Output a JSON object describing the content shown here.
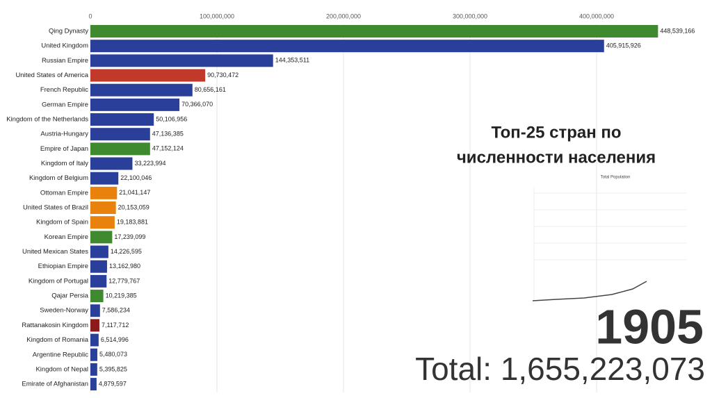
{
  "chart_data": {
    "type": "bar",
    "orientation": "horizontal",
    "title_lines": [
      "Топ-25 стран по",
      "численности населения"
    ],
    "inset_title": "Total Population",
    "year": "1905",
    "total": "Total: 1,655,223,073",
    "categories": [
      "Qing Dynasty",
      "United Kingdom",
      "Russian Empire",
      "United States of America",
      "French Republic",
      "German Empire",
      "Kingdom of the Netherlands",
      "Austria-Hungary",
      "Empire of Japan",
      "Kingdom of Italy",
      "Kingdom of Belgium",
      "Ottoman Empire",
      "United States of Brazil",
      "Kingdom of Spain",
      "Korean Empire",
      "United Mexican States",
      "Ethiopian Empire",
      "Kingdom of Portugal",
      "Qajar Persia",
      "Sweden-Norway",
      "Rattanakosin Kingdom",
      "Kingdom of Romania",
      "Argentine Republic",
      "Kingdom of Nepal",
      "Emirate of Afghanistan"
    ],
    "values": [
      448539166,
      405915926,
      144353511,
      90730472,
      80656161,
      70366070,
      50106956,
      47136385,
      47152124,
      33223994,
      22100046,
      21041147,
      20153059,
      19183881,
      17239099,
      14226595,
      13162980,
      12779767,
      10219385,
      7586234,
      7117712,
      6514996,
      5480073,
      5395825,
      4879597
    ],
    "value_labels": [
      "448,539,166",
      "405,915,926",
      "144,353,511",
      "90,730,472",
      "80,656,161",
      "70,366,070",
      "50,106,956",
      "47,136,385",
      "47,152,124",
      "33,223,994",
      "22,100,046",
      "21,041,147",
      "20,153,059",
      "19,183,881",
      "17,239,099",
      "14,226,595",
      "13,162,980",
      "12,779,767",
      "10,219,385",
      "7,586,234",
      "7,117,712",
      "6,514,996",
      "5,480,073",
      "5,395,825",
      "4,879,597"
    ],
    "colors": [
      "#3f8a2e",
      "#2a3f9a",
      "#2a3f9a",
      "#c0392b",
      "#2a3f9a",
      "#2a3f9a",
      "#2a3f9a",
      "#2a3f9a",
      "#3f8a2e",
      "#2a3f9a",
      "#2a3f9a",
      "#e8820c",
      "#e8820c",
      "#e8820c",
      "#3f8a2e",
      "#2a3f9a",
      "#2a3f9a",
      "#2a3f9a",
      "#3f8a2e",
      "#2a3f9a",
      "#8b1a1a",
      "#2a3f9a",
      "#2a3f9a",
      "#2a3f9a",
      "#2a3f9a"
    ],
    "xlim": [
      0,
      450000000
    ],
    "xticks": [
      0,
      {
        "value": 100000000,
        "label": "100,000,000"
      },
      {
        "value": 200000000,
        "label": "200,000,000"
      },
      {
        "value": 300000000,
        "label": "300,000,000"
      },
      {
        "value": 400000000,
        "label": "400,000,000"
      }
    ],
    "grid": true
  }
}
